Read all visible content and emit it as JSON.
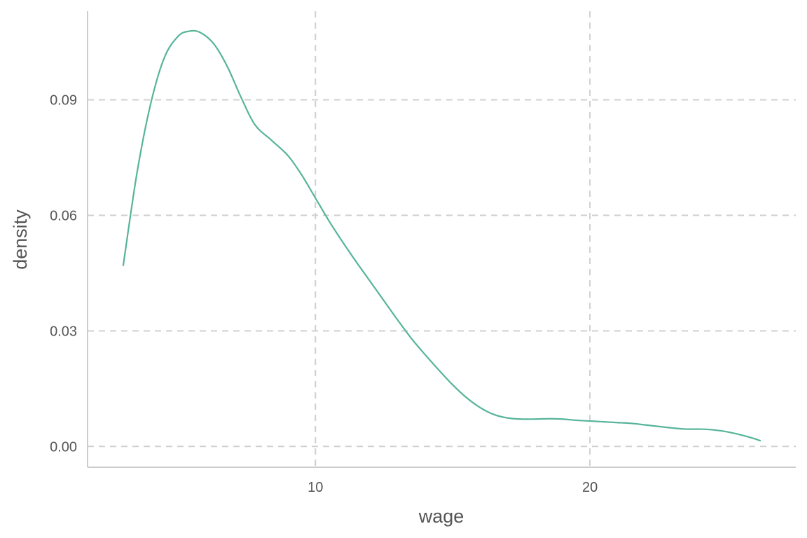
{
  "chart_data": {
    "type": "line",
    "xlabel": "wage",
    "ylabel": "density",
    "xlim": [
      1.7,
      27.5
    ],
    "ylim": [
      -0.0054,
      0.113
    ],
    "x_ticks": [
      10,
      20
    ],
    "x_tick_labels": [
      "10",
      "20"
    ],
    "y_ticks": [
      0.0,
      0.03,
      0.06,
      0.09
    ],
    "y_tick_labels": [
      "0.00",
      "0.03",
      "0.06",
      "0.09"
    ],
    "grid": true,
    "grid_style": "dashed",
    "legend": "none",
    "colors": {
      "line": "#56b49a",
      "grid": "#d0d0d0",
      "axis": "#cccccc",
      "text": "#555555"
    },
    "series": [
      {
        "x": [
          3.0,
          3.5,
          4.0,
          4.5,
          5.0,
          5.4,
          5.8,
          6.3,
          6.8,
          7.3,
          7.8,
          8.4,
          9.0,
          9.5,
          10.0,
          10.5,
          11.0,
          11.5,
          12.0,
          12.5,
          13.0,
          13.5,
          14.0,
          14.5,
          15.0,
          15.5,
          16.0,
          16.5,
          17.0,
          17.5,
          18.0,
          18.5,
          19.0,
          19.5,
          20.0,
          20.5,
          21.0,
          21.5,
          22.0,
          22.5,
          23.0,
          23.5,
          24.0,
          24.5,
          25.0,
          25.5,
          26.0,
          26.2
        ],
        "y": [
          0.047,
          0.071,
          0.089,
          0.101,
          0.1065,
          0.1078,
          0.1075,
          0.1045,
          0.0985,
          0.0905,
          0.0835,
          0.0795,
          0.0755,
          0.0705,
          0.0645,
          0.0585,
          0.053,
          0.0478,
          0.0428,
          0.0378,
          0.0328,
          0.028,
          0.0238,
          0.0198,
          0.016,
          0.0127,
          0.0101,
          0.0083,
          0.0074,
          0.0071,
          0.0071,
          0.0072,
          0.0071,
          0.0068,
          0.0066,
          0.0064,
          0.0062,
          0.006,
          0.0056,
          0.0052,
          0.0048,
          0.0045,
          0.0045,
          0.0043,
          0.0038,
          0.003,
          0.002,
          0.0015
        ]
      }
    ]
  }
}
